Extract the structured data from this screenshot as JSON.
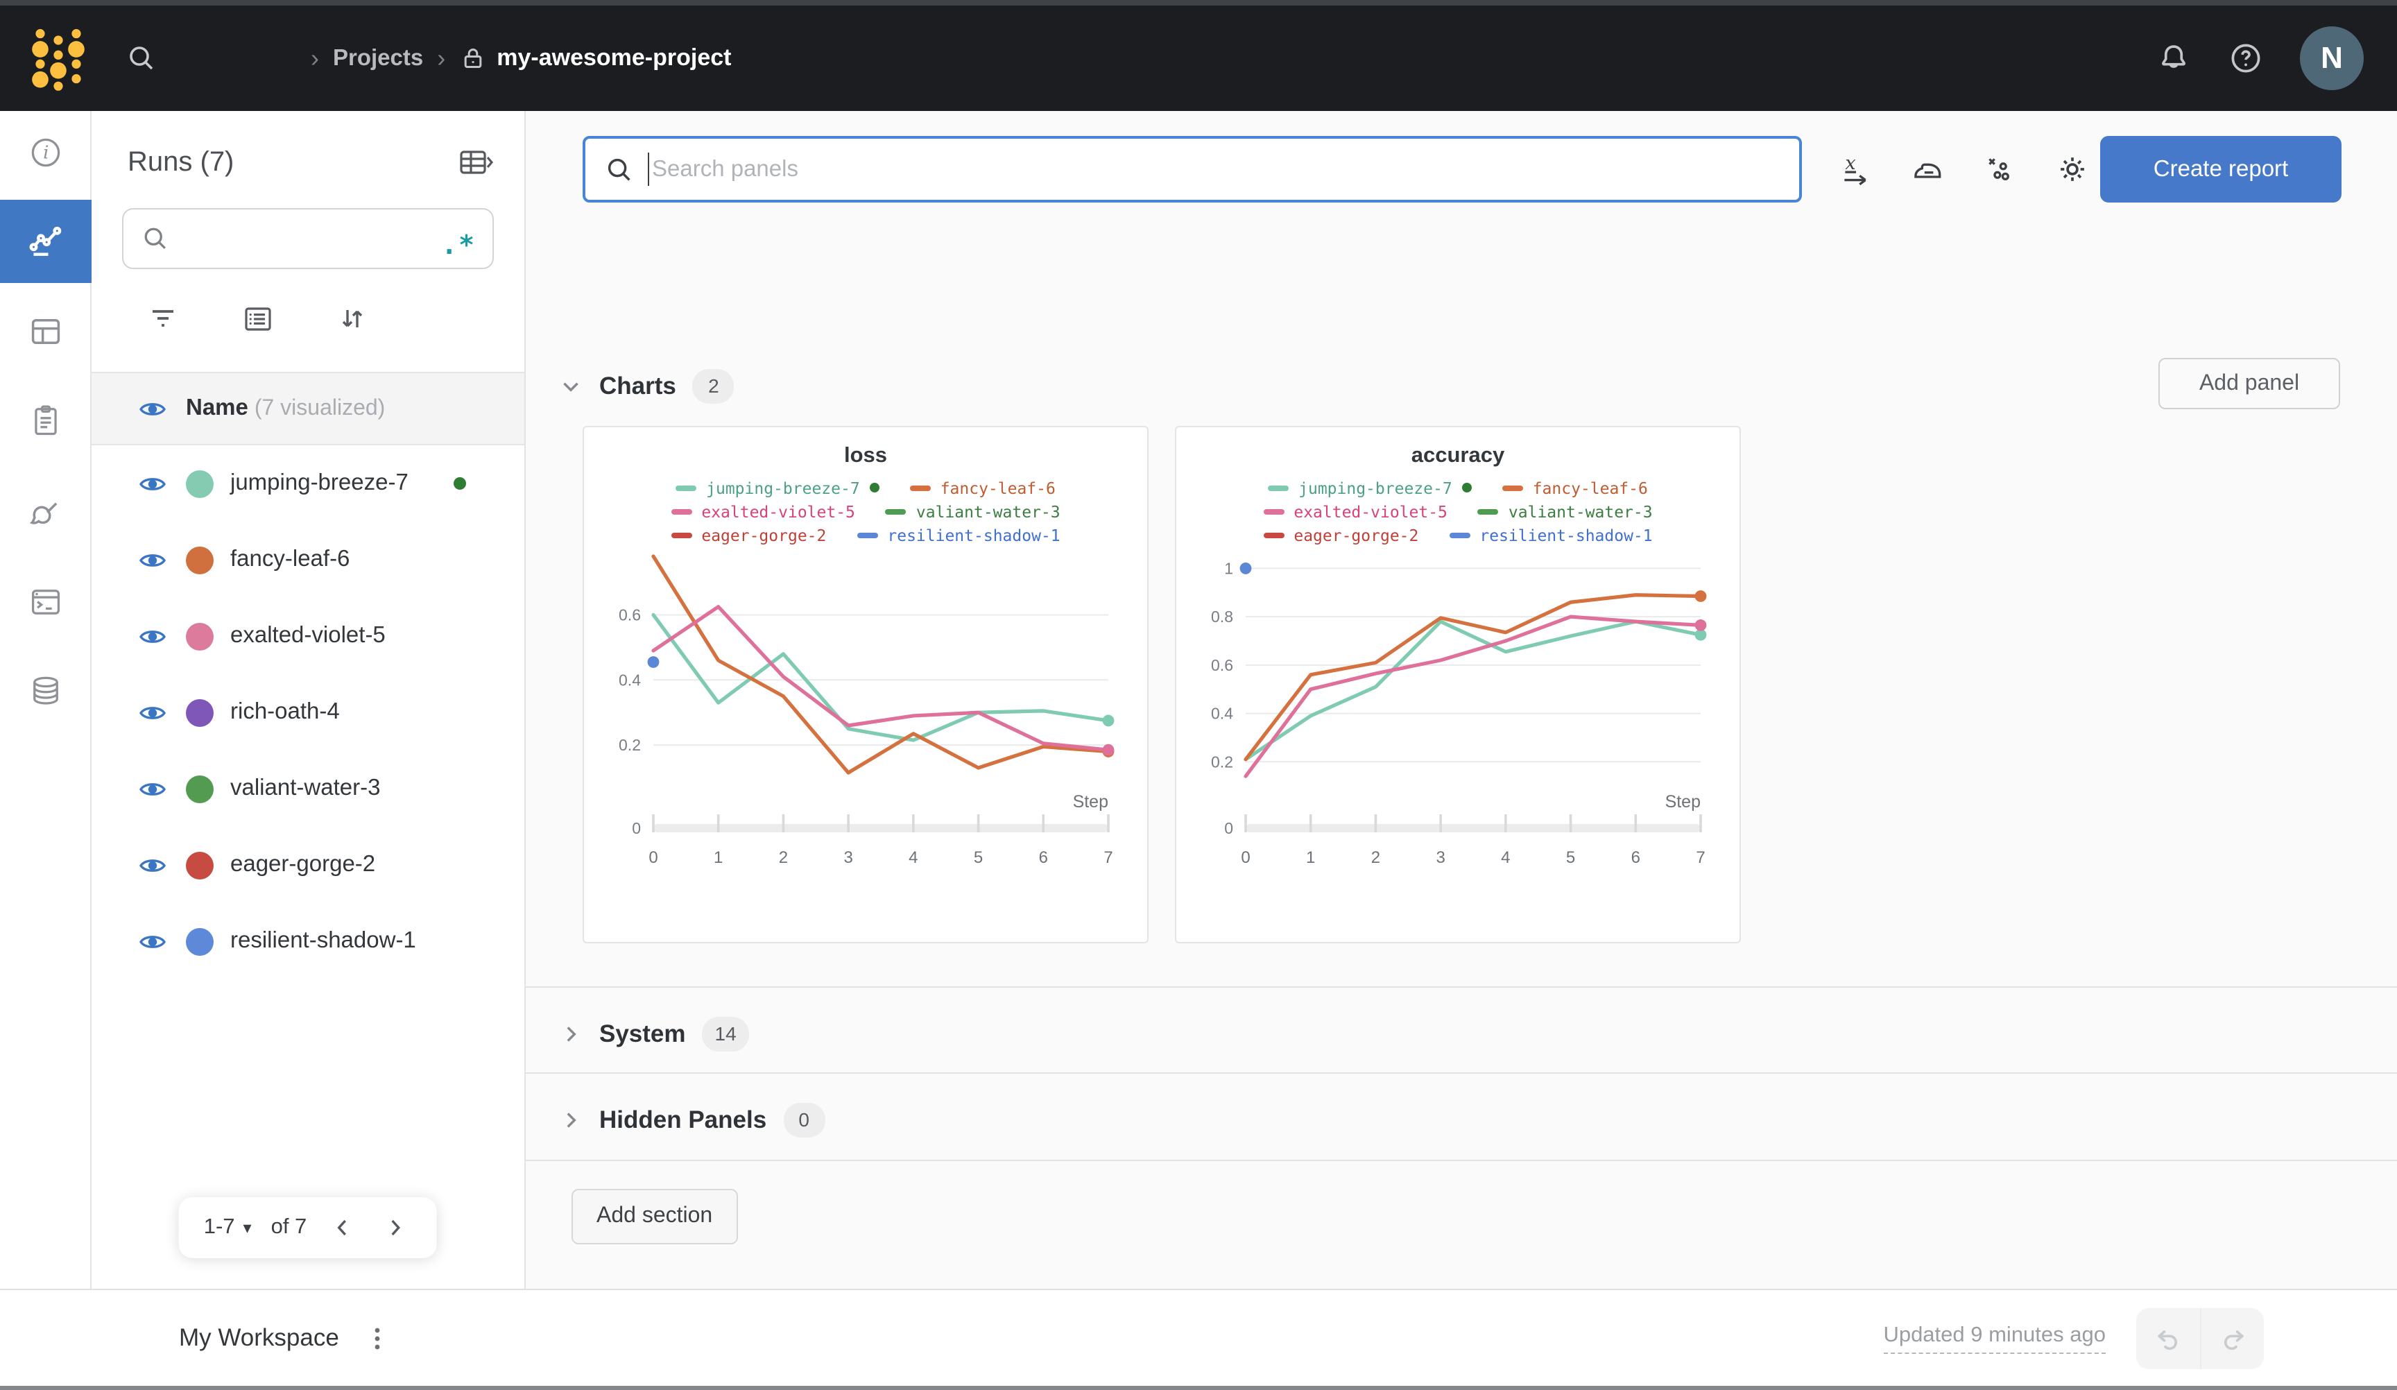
{
  "topbar": {
    "breadcrumb_sep": "›",
    "projects_label": "Projects",
    "project_name": "my-awesome-project",
    "avatar_initial": "N"
  },
  "runs_sidebar": {
    "title": "Runs (7)",
    "regex_toggle": ".*",
    "header_name": "Name",
    "header_visualized": "(7 visualized)",
    "runs": [
      {
        "name": "jumping-breeze-7",
        "color": "#84cbb2",
        "running": true
      },
      {
        "name": "fancy-leaf-6",
        "color": "#d0703f",
        "running": false
      },
      {
        "name": "exalted-violet-5",
        "color": "#dd7b9c",
        "running": false
      },
      {
        "name": "rich-oath-4",
        "color": "#7e57b8",
        "running": false
      },
      {
        "name": "valiant-water-3",
        "color": "#549b52",
        "running": false
      },
      {
        "name": "eager-gorge-2",
        "color": "#c84b42",
        "running": false
      },
      {
        "name": "resilient-shadow-1",
        "color": "#5e88d8",
        "running": false
      }
    ],
    "pagination": {
      "range": "1-7",
      "caret": "▾",
      "of_label": "of 7"
    }
  },
  "main": {
    "search_placeholder": "Search panels",
    "create_report_label": "Create report",
    "add_panel_label": "Add panel",
    "charts_section": {
      "label": "Charts",
      "count": "2"
    },
    "system_section": {
      "label": "System",
      "count": "14"
    },
    "hidden_section": {
      "label": "Hidden Panels",
      "count": "0"
    },
    "add_section_label": "Add section"
  },
  "workspace_bar": {
    "title": "My Workspace",
    "updated": "Updated 9 minutes ago"
  },
  "chart_data": [
    {
      "type": "line",
      "title": "loss",
      "xlabel": "Step",
      "x": [
        0,
        1,
        2,
        3,
        4,
        5,
        6,
        7
      ],
      "yticks": [
        0,
        0.2,
        0.4,
        0.6
      ],
      "ylim": [
        0,
        0.78
      ],
      "grid": true,
      "legend_position": "top",
      "series": [
        {
          "name": "jumping-breeze-7",
          "color": "#7fcbb1",
          "text_color": "#4ba184",
          "running_dot": true,
          "end_dot": true,
          "values": [
            0.6,
            0.33,
            0.48,
            0.25,
            0.215,
            0.3,
            0.305,
            0.275
          ]
        },
        {
          "name": "fancy-leaf-6",
          "color": "#d4713e",
          "text_color": "#c05c31",
          "end_dot": true,
          "values": [
            0.78,
            0.46,
            0.35,
            0.115,
            0.235,
            0.13,
            0.195,
            0.18
          ]
        },
        {
          "name": "exalted-violet-5",
          "color": "#df7099",
          "text_color": "#d6427c",
          "end_dot": true,
          "values": [
            0.49,
            0.625,
            0.41,
            0.26,
            0.29,
            0.3,
            0.205,
            0.185
          ]
        },
        {
          "name": "valiant-water-3",
          "color": "#4f9b51",
          "text_color": "#3c7d41",
          "values": null
        },
        {
          "name": "eager-gorge-2",
          "color": "#c8493f",
          "text_color": "#c03f36",
          "values": null
        },
        {
          "name": "resilient-shadow-1",
          "color": "#5b87d6",
          "text_color": "#3f6fd0",
          "values": null,
          "point": [
            0,
            0.455
          ]
        }
      ]
    },
    {
      "type": "line",
      "title": "accuracy",
      "xlabel": "Step",
      "x": [
        0,
        1,
        2,
        3,
        4,
        5,
        6,
        7
      ],
      "yticks": [
        0,
        0.2,
        0.4,
        0.6,
        0.8,
        1
      ],
      "ylim": [
        0,
        1.05
      ],
      "grid": true,
      "legend_position": "top",
      "series": [
        {
          "name": "jumping-breeze-7",
          "color": "#7fcbb1",
          "text_color": "#4ba184",
          "running_dot": true,
          "end_dot": true,
          "values": [
            0.21,
            0.39,
            0.51,
            0.78,
            0.655,
            0.72,
            0.78,
            0.725
          ]
        },
        {
          "name": "fancy-leaf-6",
          "color": "#d4713e",
          "text_color": "#c05c31",
          "end_dot": true,
          "values": [
            0.21,
            0.56,
            0.61,
            0.795,
            0.735,
            0.86,
            0.89,
            0.885
          ]
        },
        {
          "name": "exalted-violet-5",
          "color": "#df7099",
          "text_color": "#d6427c",
          "end_dot": true,
          "values": [
            0.14,
            0.5,
            0.565,
            0.62,
            0.7,
            0.8,
            0.78,
            0.765
          ]
        },
        {
          "name": "valiant-water-3",
          "color": "#4f9b51",
          "text_color": "#3c7d41",
          "values": null
        },
        {
          "name": "eager-gorge-2",
          "color": "#c8493f",
          "text_color": "#c03f36",
          "values": null
        },
        {
          "name": "resilient-shadow-1",
          "color": "#5b87d6",
          "text_color": "#3f6fd0",
          "values": null,
          "point": [
            0,
            1.0
          ]
        }
      ]
    }
  ]
}
